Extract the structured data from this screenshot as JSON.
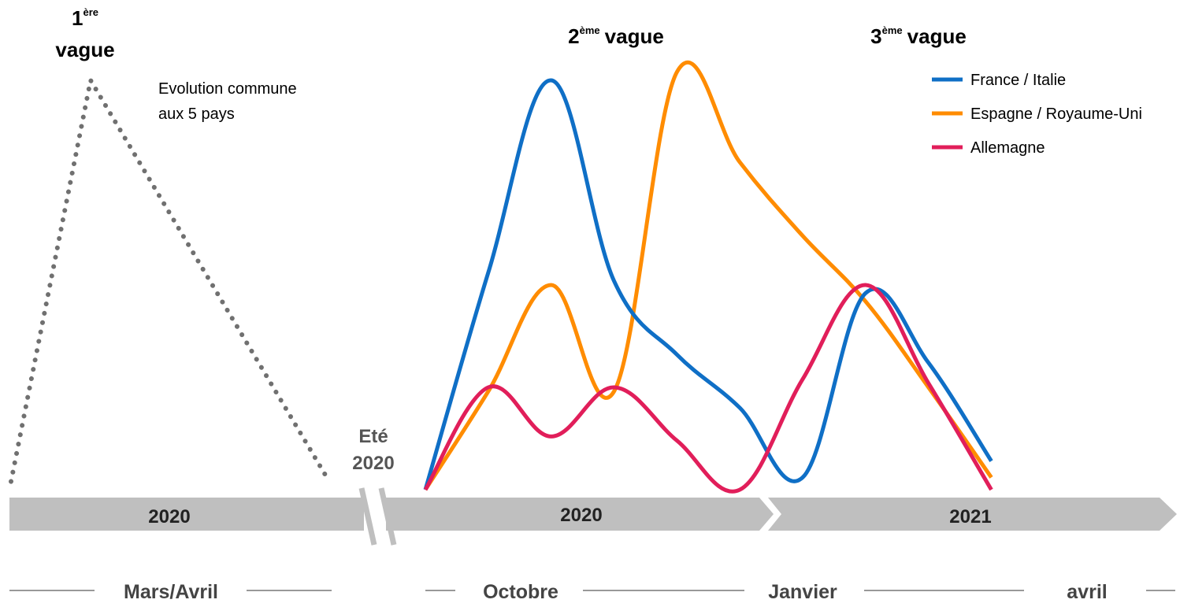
{
  "chart_data": {
    "type": "line",
    "title": "",
    "xlabel": "",
    "ylabel": "",
    "ylim": [
      0,
      100
    ],
    "grid": false,
    "legend_placement": "top-right",
    "annotations": {
      "wave1": {
        "main": "1",
        "sup": "ère",
        "word": "vague"
      },
      "wave2": {
        "main": "2",
        "sup": "ème",
        "word": "vague"
      },
      "wave3": {
        "main": "3",
        "sup": "ème",
        "word": "vague"
      },
      "common_note": [
        "Evolution commune",
        "aux 5 pays"
      ],
      "summer": [
        "Eté",
        "2020"
      ]
    },
    "timeline": {
      "bands": [
        "2020",
        "2020",
        "2021"
      ],
      "months": [
        "Mars/Avril",
        "Octobre",
        "Janvier",
        "avril"
      ]
    },
    "first_wave": {
      "name": "Evolution commune aux 5 pays",
      "color": "#707070",
      "style": "dotted",
      "x": [
        0,
        0.5,
        2
      ],
      "values": [
        2,
        100,
        2
      ]
    },
    "series": [
      {
        "name": "France / Italie",
        "color": "#0F6FC6",
        "x": [
          0,
          1,
          2,
          3,
          4,
          5,
          6,
          7,
          8,
          9,
          10,
          11,
          12
        ],
        "values": [
          0,
          53,
          100,
          51,
          33,
          20,
          3,
          48,
          31,
          7,
          0,
          0,
          0
        ]
      },
      {
        "name": "Espagne / Royaume-Uni",
        "color": "#FF8C00",
        "x": [
          0,
          1,
          2,
          3,
          4,
          5,
          6,
          7,
          8,
          9,
          10,
          11,
          12
        ],
        "values": [
          0,
          24,
          50,
          24,
          102,
          80,
          62,
          46,
          25,
          3,
          0,
          0,
          0
        ]
      },
      {
        "name": "Allemagne",
        "color": "#E11E5A",
        "x": [
          0,
          1,
          2,
          3,
          4,
          5,
          6,
          7,
          8,
          9,
          10,
          11,
          12
        ],
        "values": [
          0,
          25,
          13,
          25,
          12,
          0,
          27,
          50,
          26,
          0,
          0,
          0,
          0
        ]
      }
    ]
  }
}
